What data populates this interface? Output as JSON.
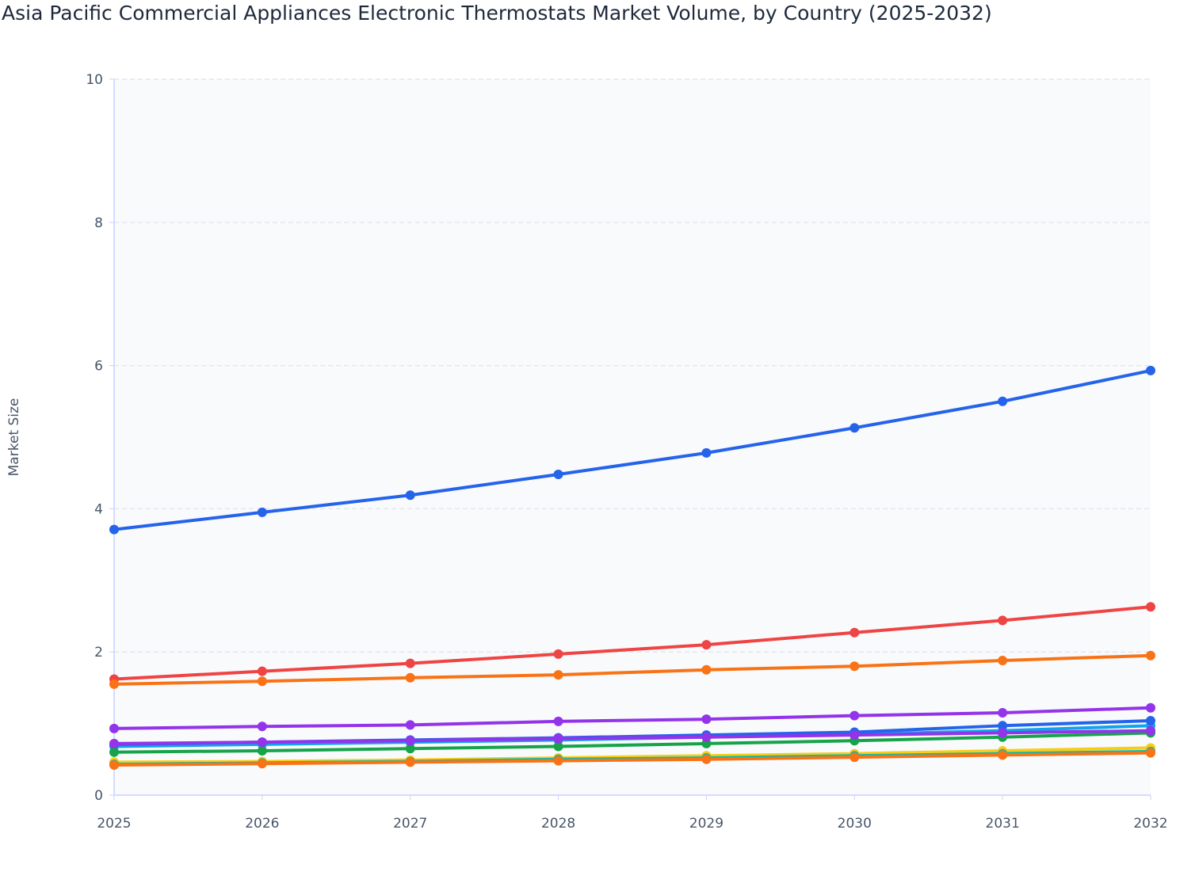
{
  "chart_data": {
    "type": "line",
    "title": "Asia Pacific Commercial Appliances Electronic Thermostats Market Volume, by Country (2025-2032)",
    "xlabel": "",
    "ylabel": "Market Size",
    "x": [
      "2025",
      "2026",
      "2027",
      "2028",
      "2029",
      "2030",
      "2031",
      "2032"
    ],
    "ylim": [
      0,
      10
    ],
    "yticks": [
      "0",
      "2",
      "4",
      "6",
      "8",
      "10"
    ],
    "grid": true,
    "legend": "none",
    "series": [
      {
        "color": "#2563eb",
        "values": [
          3.71,
          3.95,
          4.19,
          4.48,
          4.78,
          5.13,
          5.5,
          5.93
        ]
      },
      {
        "color": "#ef4444",
        "values": [
          1.62,
          1.73,
          1.84,
          1.97,
          2.1,
          2.27,
          2.44,
          2.63
        ]
      },
      {
        "color": "#f97316",
        "values": [
          1.55,
          1.59,
          1.64,
          1.68,
          1.75,
          1.8,
          1.88,
          1.95
        ]
      },
      {
        "color": "#9333ea",
        "values": [
          0.93,
          0.96,
          0.98,
          1.03,
          1.06,
          1.11,
          1.15,
          1.22
        ]
      },
      {
        "color": "#0ea5e9",
        "values": [
          0.68,
          0.71,
          0.74,
          0.77,
          0.81,
          0.85,
          0.9,
          0.97
        ]
      },
      {
        "color": "#2563eb",
        "values": [
          0.71,
          0.74,
          0.77,
          0.8,
          0.84,
          0.88,
          0.97,
          1.04
        ]
      },
      {
        "color": "#16a34a",
        "values": [
          0.6,
          0.62,
          0.65,
          0.68,
          0.72,
          0.76,
          0.81,
          0.87
        ]
      },
      {
        "color": "#9333ea",
        "values": [
          0.72,
          0.74,
          0.76,
          0.79,
          0.81,
          0.84,
          0.87,
          0.9
        ]
      },
      {
        "color": "#facc15",
        "values": [
          0.46,
          0.47,
          0.49,
          0.52,
          0.55,
          0.58,
          0.62,
          0.66
        ]
      },
      {
        "color": "#14b8a6",
        "values": [
          0.43,
          0.45,
          0.47,
          0.5,
          0.52,
          0.55,
          0.58,
          0.61
        ]
      },
      {
        "color": "#f97316",
        "values": [
          0.42,
          0.44,
          0.46,
          0.48,
          0.5,
          0.53,
          0.56,
          0.59
        ]
      }
    ]
  }
}
